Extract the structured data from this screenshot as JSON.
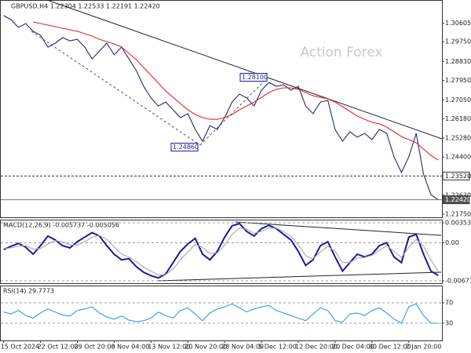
{
  "chart_data": [
    {
      "type": "line",
      "title": "GBPUSD,H4  1.22304 1.22533 1.22191 1.22420",
      "watermark": "Action Forex",
      "ylim": [
        1.2157,
        1.3161
      ],
      "grid": false,
      "yticks": [
        1.30605,
        {
          "value": 1.2975,
          "label": "1.29750"
        },
        {
          "value": 1.2883,
          "label": "1.28830"
        },
        {
          "value": 1.2795,
          "label": "1.27950"
        },
        {
          "value": 1.2705,
          "label": "1.27050"
        },
        {
          "value": 1.2618,
          "label": "1.26180"
        },
        {
          "value": 1.2528,
          "label": "1.25280"
        },
        {
          "value": 1.244,
          "label": "1.24400"
        },
        {
          "value": 1.2263,
          "label": "1.22630"
        },
        {
          "value": 1.2175,
          "label": "1.21750"
        }
      ],
      "hlines": [
        {
          "value": 1.2352,
          "label": "1.23520"
        },
        {
          "value": 1.2242,
          "label": "1.22420"
        }
      ],
      "annotations": [
        {
          "value": 1.281,
          "label": "1.28100"
        },
        {
          "value": 1.2486,
          "label": "1.24860"
        }
      ],
      "series": [
        {
          "color": "#1f2d6b",
          "values": [
            1.3096,
            1.3077,
            1.3041,
            1.3059,
            1.3023,
            1.3005,
            1.295,
            1.2968,
            1.2994,
            1.2979,
            1.2986,
            1.295,
            1.2895,
            1.2932,
            1.2968,
            1.2914,
            1.295,
            1.2895,
            1.2841,
            1.2768,
            1.2714,
            1.2677,
            1.2695,
            1.2659,
            1.2623,
            1.2641,
            1.2568,
            1.2513,
            1.2586,
            1.2568,
            1.2623,
            1.2695,
            1.2732,
            1.2714,
            1.2677,
            1.275,
            1.2786,
            1.2768,
            1.2775,
            1.275,
            1.2768,
            1.2677,
            1.2641,
            1.2695,
            1.2703,
            1.2568,
            1.2513,
            1.2557,
            1.2532,
            1.255,
            1.2521,
            1.2568,
            1.255,
            1.2441,
            1.2368,
            1.2441,
            1.255,
            1.2361,
            1.2266,
            1.2241
          ]
        },
        {
          "color": "#e02828",
          "values": [
            null,
            null,
            null,
            null,
            1.3066,
            1.3059,
            1.3052,
            1.3045,
            1.3037,
            1.303,
            1.3023,
            1.3012,
            1.3001,
            1.2986,
            1.2975,
            1.2965,
            1.295,
            1.2921,
            1.2892,
            1.2855,
            1.2819,
            1.2783,
            1.2746,
            1.2717,
            1.2688,
            1.2659,
            1.2637,
            1.2623,
            1.2615,
            1.2615,
            1.2623,
            1.2637,
            1.2659,
            1.2677,
            1.2695,
            1.2717,
            1.2739,
            1.2754,
            1.2761,
            1.2761,
            1.2754,
            1.2739,
            1.2724,
            1.2717,
            1.271,
            1.2695,
            1.2674,
            1.2652,
            1.263,
            1.2615,
            1.2601,
            1.2594,
            1.2579,
            1.2557,
            1.2535,
            1.2521,
            1.2506,
            1.2477,
            1.2448,
            1.2426
          ]
        }
      ]
    },
    {
      "type": "line",
      "title": "MACD(12,26,9) -0.005737 -0.005056",
      "ylim": [
        -0.006711,
        0.003537
      ],
      "grid": true,
      "yticks": [
        0.003537,
        {
          "value": 0,
          "label": "0.00"
        },
        -0.006711
      ],
      "series": [
        {
          "color": "#1a1a9c",
          "values": [
            -0.0012,
            -0.0006,
            -0.0001,
            -0.0008,
            -0.002,
            -0.0005,
            0.0012,
            0.0005,
            -0.0005,
            -0.0009,
            0.0002,
            0.001,
            0.0018,
            0.0012,
            -0.0005,
            -0.002,
            -0.003,
            -0.0028,
            -0.0042,
            -0.0052,
            -0.0058,
            -0.0062,
            -0.0055,
            -0.0035,
            -0.0015,
            -0.0002,
            0.0008,
            -0.002,
            -0.003,
            -0.0015,
            0.001,
            0.003,
            0.0034,
            0.002,
            0.0012,
            0.0025,
            0.0031,
            0.0025,
            0.0015,
            0.0005,
            -0.0015,
            -0.004,
            -0.003,
            -0.0005,
            0.0002,
            -0.0025,
            -0.005,
            -0.0035,
            -0.002,
            -0.0025,
            -0.002,
            -0.0005,
            0,
            -0.0025,
            -0.0035,
            0.001,
            0.0015,
            -0.002,
            -0.005,
            -0.005737
          ]
        },
        {
          "color": "#a8a8a8",
          "values": [
            -0.001,
            -0.0009,
            -0.0006,
            -0.0005,
            -0.0011,
            -0.001,
            -0.0002,
            0.0004,
            0.0002,
            -0.0004,
            -0.0004,
            0.0002,
            0.001,
            0.0013,
            0.0006,
            -0.0007,
            -0.002,
            -0.0025,
            -0.0033,
            -0.0043,
            -0.005,
            -0.0057,
            -0.0056,
            -0.0046,
            -0.003,
            -0.0016,
            -0.0003,
            -0.0008,
            -0.0019,
            -0.0018,
            -0.0004,
            0.0015,
            0.0026,
            0.0024,
            0.0017,
            0.002,
            0.0026,
            0.0026,
            0.002,
            0.0011,
            -0.0003,
            -0.0023,
            -0.0028,
            -0.0016,
            -0.0006,
            -0.0015,
            -0.0035,
            -0.0035,
            -0.0027,
            -0.0026,
            -0.0022,
            -0.0013,
            -0.0005,
            -0.0015,
            -0.0026,
            -0.0008,
            0.0006,
            -0.0006,
            -0.003,
            -0.005056
          ]
        }
      ]
    },
    {
      "type": "line",
      "title": "RSI(14) 29.7773",
      "ylim": [
        0,
        100
      ],
      "grid": true,
      "yticks": [
        70,
        30
      ],
      "categories": [
        "15 Oct 2024",
        null,
        null,
        null,
        null,
        "22 Oct 12:00",
        null,
        null,
        null,
        null,
        "29 Oct 20:00",
        null,
        null,
        null,
        null,
        "6 Nov 04:00",
        null,
        null,
        null,
        null,
        "13 Nov 12:00",
        null,
        null,
        null,
        null,
        "20 Nov 20:00",
        null,
        null,
        null,
        null,
        "28 Nov 04:00",
        null,
        null,
        null,
        null,
        "5 Dec 12:00",
        null,
        null,
        null,
        null,
        "12 Dec 20:00",
        null,
        null,
        null,
        null,
        "20 Dec 04:00",
        null,
        null,
        null,
        null,
        "30 Dec 12:00",
        null,
        null,
        null,
        null,
        "7 Jan 20:00",
        null,
        null,
        null,
        null
      ],
      "series": [
        {
          "color": "#3399ee",
          "values": [
            52,
            48,
            55,
            45,
            40,
            50,
            58,
            52,
            46,
            44,
            55,
            58,
            62,
            50,
            42,
            38,
            44,
            36,
            33,
            35,
            40,
            52,
            45,
            40,
            55,
            60,
            48,
            35,
            50,
            58,
            62,
            68,
            60,
            52,
            58,
            62,
            65,
            55,
            50,
            45,
            40,
            35,
            48,
            60,
            55,
            35,
            32,
            48,
            50,
            45,
            55,
            60,
            50,
            38,
            30,
            62,
            68,
            45,
            30,
            29.7773
          ]
        }
      ]
    }
  ]
}
